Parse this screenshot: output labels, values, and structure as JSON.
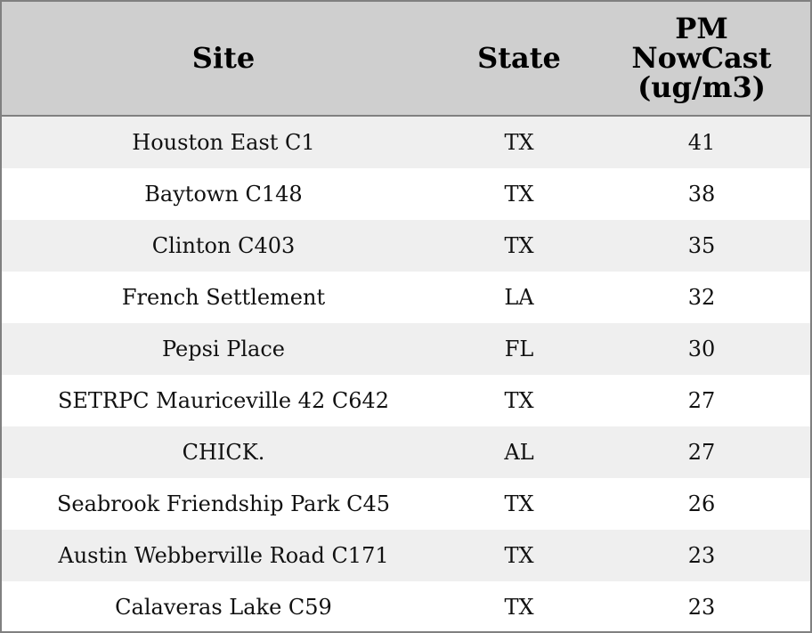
{
  "table": {
    "header": [
      "Site",
      "State",
      [
        "PM",
        "NowCast",
        "(ug/m3)"
      ]
    ],
    "rows": [
      [
        "Houston East C1",
        "TX",
        41
      ],
      [
        "Baytown C148",
        "TX",
        38
      ],
      [
        "Clinton C403",
        "TX",
        35
      ],
      [
        "French Settlement",
        "LA",
        32
      ],
      [
        "Pepsi Place",
        "FL",
        30
      ],
      [
        "SETRPC Mauriceville 42 C642",
        "TX",
        27
      ],
      [
        "CHICK.",
        "AL",
        27
      ],
      [
        "Seabrook Friendship Park C45",
        "TX",
        26
      ],
      [
        "Austin Webberville Road C171",
        "TX",
        23
      ],
      [
        "Calaveras Lake C59",
        "TX",
        23
      ]
    ]
  }
}
